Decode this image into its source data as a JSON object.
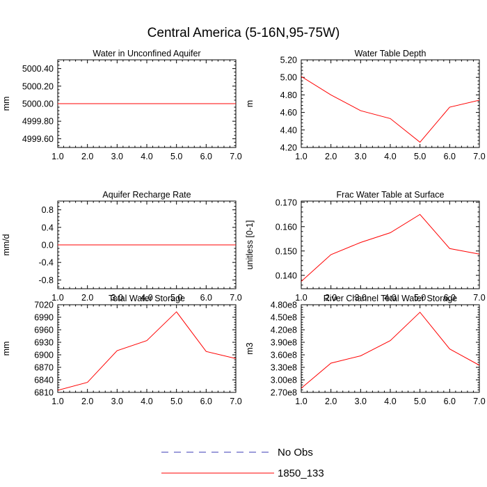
{
  "title": "Central America (5-16N,95-75W)",
  "colors": {
    "series": "#ff0000",
    "obs": "#3b3bb5",
    "axis": "#000000"
  },
  "legend": [
    {
      "label": "No Obs",
      "style": "dashed",
      "color": "#3b3bb5"
    },
    {
      "label": "1850_133",
      "style": "solid",
      "color": "#ff0000"
    }
  ],
  "chart_data": [
    {
      "type": "line",
      "title": "Water in Unconfined Aquifer",
      "ylabel": "mm",
      "xlim": [
        1,
        7
      ],
      "ylim": [
        4999.5,
        5000.5
      ],
      "xticks": [
        1,
        2,
        3,
        4,
        5,
        6,
        7
      ],
      "xtick_labels": [
        "1.0",
        "2.0",
        "3.0",
        "4.0",
        "5.0",
        "6.0",
        "7.0"
      ],
      "yticks": [
        4999.6,
        4999.8,
        5000.0,
        5000.2,
        5000.4
      ],
      "ytick_labels": [
        "4999.60",
        "4999.80",
        "5000.00",
        "5000.20",
        "5000.40"
      ],
      "series": [
        {
          "name": "1850_133",
          "x": [
            1,
            2,
            3,
            4,
            5,
            6,
            7
          ],
          "values": [
            5000,
            5000,
            5000,
            5000,
            5000,
            5000,
            5000
          ]
        }
      ]
    },
    {
      "type": "line",
      "title": "Water Table Depth",
      "ylabel": "m",
      "xlim": [
        1,
        7
      ],
      "ylim": [
        4.2,
        5.2
      ],
      "xticks": [
        1,
        2,
        3,
        4,
        5,
        6,
        7
      ],
      "xtick_labels": [
        "1.0",
        "2.0",
        "3.0",
        "4.0",
        "5.0",
        "6.0",
        "7.0"
      ],
      "yticks": [
        4.2,
        4.4,
        4.6,
        4.8,
        5.0,
        5.2
      ],
      "ytick_labels": [
        "4.20",
        "4.40",
        "4.60",
        "4.80",
        "5.00",
        "5.20"
      ],
      "series": [
        {
          "name": "1850_133",
          "x": [
            1,
            2,
            3,
            4,
            5,
            6,
            7
          ],
          "values": [
            5.01,
            4.8,
            4.62,
            4.53,
            4.26,
            4.66,
            4.74
          ]
        }
      ]
    },
    {
      "type": "line",
      "title": "Aquifer Recharge Rate",
      "ylabel": "mm/d",
      "xlim": [
        1,
        7
      ],
      "ylim": [
        -1.0,
        1.0
      ],
      "xticks": [
        1,
        2,
        3,
        4,
        5,
        6,
        7
      ],
      "xtick_labels": [
        "1.0",
        "2.0",
        "3.0",
        "4.0",
        "5.0",
        "6.0",
        "7.0"
      ],
      "yticks": [
        -0.8,
        -0.4,
        0.0,
        0.4,
        0.8
      ],
      "ytick_labels": [
        "-0.8",
        "-0.4",
        "0.0",
        "0.4",
        "0.8"
      ],
      "series": [
        {
          "name": "1850_133",
          "x": [
            1,
            2,
            3,
            4,
            5,
            6,
            7
          ],
          "values": [
            0,
            0,
            0,
            0,
            0,
            0,
            0
          ]
        }
      ]
    },
    {
      "type": "line",
      "title": "Frac Water Table at Surface",
      "ylabel": "unitless [0-1]",
      "xlim": [
        1,
        7
      ],
      "ylim": [
        0.1345,
        0.1705
      ],
      "xticks": [
        1,
        2,
        3,
        4,
        5,
        6,
        7
      ],
      "xtick_labels": [
        "1.0",
        "2.0",
        "3.0",
        "4.0",
        "5.0",
        "6.0",
        "7.0"
      ],
      "yticks": [
        0.14,
        0.15,
        0.16,
        0.17
      ],
      "ytick_labels": [
        "0.140",
        "0.150",
        "0.160",
        "0.170"
      ],
      "series": [
        {
          "name": "1850_133",
          "x": [
            1,
            2,
            3,
            4,
            5,
            6,
            7
          ],
          "values": [
            0.1375,
            0.1485,
            0.1535,
            0.1575,
            0.165,
            0.151,
            0.1487
          ]
        }
      ]
    },
    {
      "type": "line",
      "title": "Total Water Storage",
      "ylabel": "mm",
      "xlim": [
        1,
        7
      ],
      "ylim": [
        6810,
        7020
      ],
      "xticks": [
        1,
        2,
        3,
        4,
        5,
        6,
        7
      ],
      "xtick_labels": [
        "1.0",
        "2.0",
        "3.0",
        "4.0",
        "5.0",
        "6.0",
        "7.0"
      ],
      "yticks": [
        6810,
        6840,
        6870,
        6900,
        6930,
        6960,
        6990,
        7020
      ],
      "ytick_labels": [
        "6810",
        "6840",
        "6870",
        "6900",
        "6930",
        "6960",
        "6990",
        "7020"
      ],
      "series": [
        {
          "name": "1850_133",
          "x": [
            1,
            2,
            3,
            4,
            5,
            6,
            7
          ],
          "values": [
            6815,
            6834,
            6910,
            6934,
            7003,
            6908,
            6891
          ]
        }
      ]
    },
    {
      "type": "line",
      "title": "River Channel Total Water Storage",
      "ylabel": "m3",
      "xlim": [
        1,
        7
      ],
      "ylim": [
        270000000.0,
        480000000.0
      ],
      "xticks": [
        1,
        2,
        3,
        4,
        5,
        6,
        7
      ],
      "xtick_labels": [
        "1.0",
        "2.0",
        "3.0",
        "4.0",
        "5.0",
        "6.0",
        "7.0"
      ],
      "yticks": [
        270000000.0,
        300000000.0,
        330000000.0,
        360000000.0,
        390000000.0,
        420000000.0,
        450000000.0,
        480000000.0
      ],
      "ytick_labels": [
        "2.70e8",
        "3.00e8",
        "3.30e8",
        "3.60e8",
        "3.90e8",
        "4.20e8",
        "4.50e8",
        "4.80e8"
      ],
      "series": [
        {
          "name": "1850_133",
          "x": [
            1,
            2,
            3,
            4,
            5,
            6,
            7
          ],
          "values": [
            280000000.0,
            340000000.0,
            357500000.0,
            394000000.0,
            462000000.0,
            374000000.0,
            335000000.0
          ]
        }
      ]
    }
  ]
}
